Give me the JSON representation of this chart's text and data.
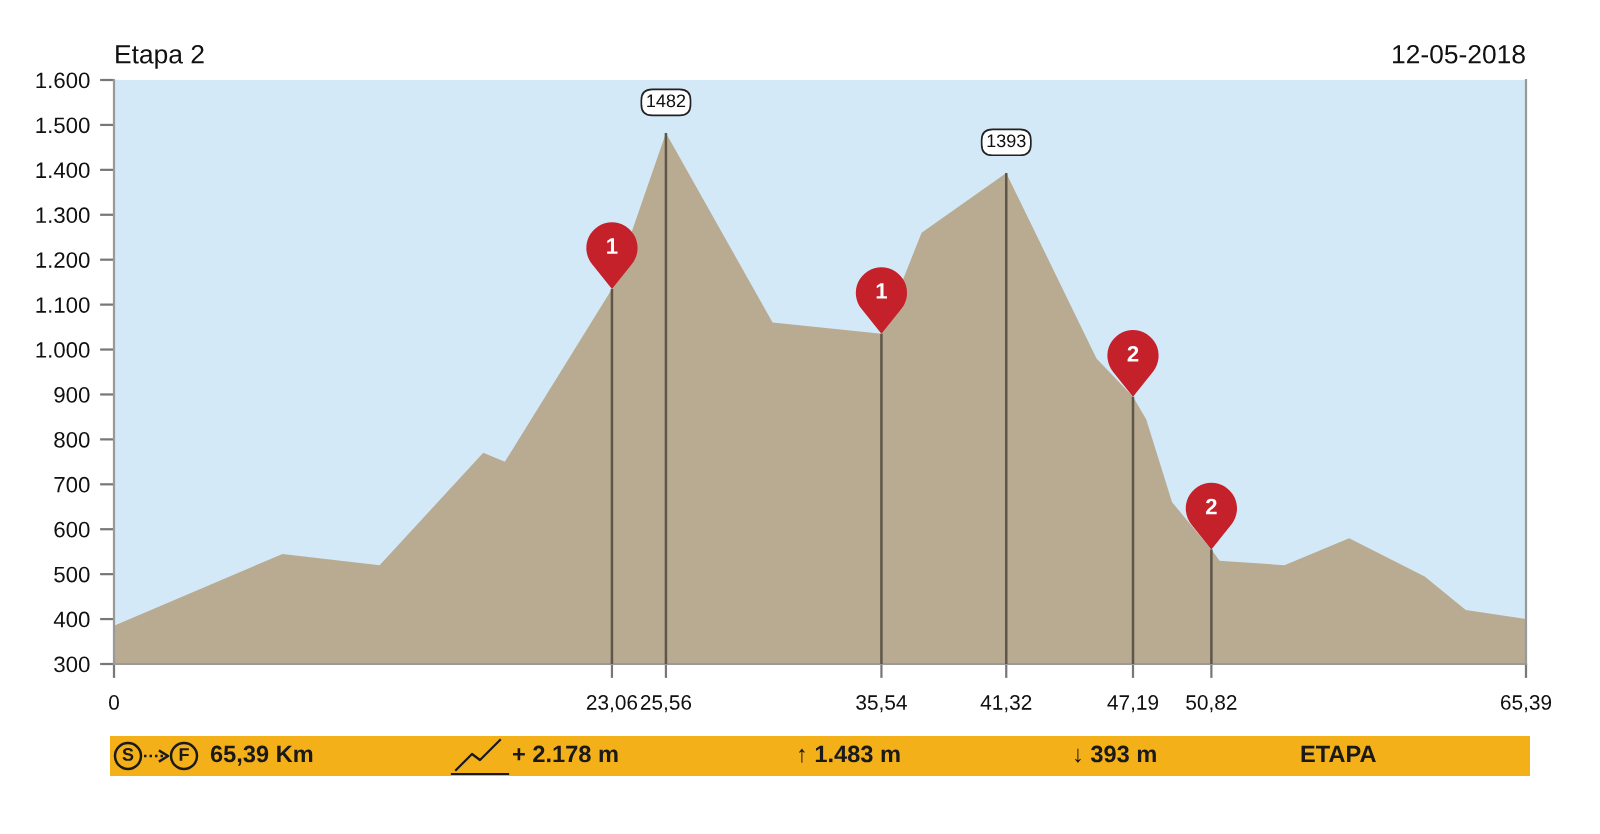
{
  "chart_data": {
    "type": "area",
    "title": "Etapa 2",
    "subtitle": "12-05-2018",
    "series": [
      {
        "color": "#b9ab92",
        "x": [
          0,
          7.8,
          12.3,
          17.1,
          18.1,
          23.06,
          25.56,
          30.5,
          35.54,
          37.4,
          41.32,
          45.5,
          47.19,
          47.8,
          49.0,
          50.82,
          51.2,
          54.2,
          57.2,
          60.7,
          62.6,
          65.39
        ],
        "values": [
          385,
          545,
          520,
          770,
          750,
          1135,
          1482,
          1060,
          1035,
          1260,
          1393,
          980,
          895,
          845,
          660,
          555,
          530,
          520,
          580,
          495,
          420,
          400
        ],
        "value_labels": [
          null,
          null,
          null,
          null,
          null,
          null,
          "1482",
          null,
          null,
          null,
          "1393",
          null,
          null,
          null,
          null,
          null,
          null,
          null,
          null,
          null,
          null,
          null
        ]
      }
    ],
    "xlim": [
      0,
      65.39
    ],
    "xticks": [
      0,
      {
        "value": 23.06,
        "label": "23,06"
      },
      {
        "value": 25.56,
        "label": "25,56"
      },
      {
        "value": 35.54,
        "label": "35,54"
      },
      {
        "value": 41.32,
        "label": "41,32"
      },
      {
        "value": 47.19,
        "label": "47,19"
      },
      {
        "value": 50.82,
        "label": "50,82"
      },
      {
        "value": 65.39,
        "label": "65,39"
      }
    ],
    "ylim": [
      300,
      1600
    ],
    "yticks": [
      300,
      400,
      500,
      600,
      700,
      800,
      900,
      {
        "value": 1000,
        "label": "1.000"
      },
      {
        "value": 1100,
        "label": "1.100"
      },
      {
        "value": 1200,
        "label": "1.200"
      },
      {
        "value": 1300,
        "label": "1.300"
      },
      {
        "value": 1400,
        "label": "1.400"
      },
      {
        "value": 1500,
        "label": "1.500"
      },
      {
        "value": 1600,
        "label": "1.600"
      }
    ],
    "ref_lines": [
      {
        "axis": "x",
        "value": 23.06,
        "color": "#5e5649"
      },
      {
        "axis": "x",
        "value": 25.56,
        "color": "#5e5649"
      },
      {
        "axis": "x",
        "value": 35.54,
        "color": "#5e5649"
      },
      {
        "axis": "x",
        "value": 41.32,
        "color": "#5e5649"
      },
      {
        "axis": "x",
        "value": 47.19,
        "color": "#5e5649"
      },
      {
        "axis": "x",
        "value": 50.82,
        "color": "#5e5649"
      }
    ],
    "annotations": [
      {
        "text": "1",
        "x": 23.06,
        "y": 1135
      },
      {
        "text": "1",
        "x": 35.54,
        "y": 1035
      },
      {
        "text": "2",
        "x": 47.19,
        "y": 895
      },
      {
        "text": "2",
        "x": 50.82,
        "y": 555
      },
      "S",
      "F",
      "65,39 Km",
      "+ 2.178 m",
      "↑ 1.483 m",
      "↓ 393 m",
      "ETAPA"
    ]
  }
}
